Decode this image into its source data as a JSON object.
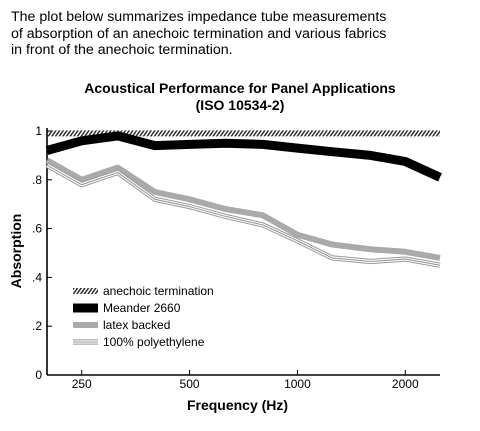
{
  "intro_text": "The plot below summarizes impedance tube measurements\nof absorption of an anechoic termination and various fabrics\nin front of the anechoic termination.",
  "chart_data": {
    "type": "line",
    "title": "Acoustical Performance for Panel Applications",
    "subtitle": "(ISO 10534-2)",
    "xlabel": "Frequency (Hz)",
    "ylabel": "Absorption",
    "x_scale": "log",
    "xlim": [
      200,
      2500
    ],
    "ylim": [
      0,
      1
    ],
    "x_ticks": [
      250,
      500,
      1000,
      2000
    ],
    "x_tick_labels": [
      "250",
      "500",
      "1000",
      "2000"
    ],
    "y_ticks": [
      0,
      0.2,
      0.4,
      0.6,
      0.8,
      1
    ],
    "y_tick_labels": [
      "0",
      ".2",
      ".4",
      ".6",
      ".8",
      "1"
    ],
    "grid": false,
    "legend_position": "lower-left",
    "x": [
      200,
      250,
      315,
      400,
      500,
      630,
      800,
      1000,
      1250,
      1600,
      2000,
      2500
    ],
    "series": [
      {
        "name": "anechoic termination",
        "style": "hatched",
        "color": "#333333",
        "values": [
          0.99,
          0.99,
          0.99,
          0.99,
          0.99,
          0.99,
          0.99,
          0.99,
          0.99,
          0.99,
          0.99,
          0.99
        ]
      },
      {
        "name": "Meander 2660",
        "style": "thick",
        "color": "#000000",
        "values": [
          0.92,
          0.96,
          0.98,
          0.94,
          0.945,
          0.95,
          0.945,
          0.93,
          0.915,
          0.9,
          0.875,
          0.81
        ]
      },
      {
        "name": "latex backed",
        "style": "medium",
        "color": "#aaaaaa",
        "values": [
          0.88,
          0.8,
          0.85,
          0.75,
          0.72,
          0.68,
          0.655,
          0.575,
          0.535,
          0.515,
          0.505,
          0.48
        ]
      },
      {
        "name": "100% polyethylene",
        "style": "triple",
        "color": "#999999",
        "values": [
          0.86,
          0.78,
          0.83,
          0.72,
          0.69,
          0.65,
          0.615,
          0.55,
          0.48,
          0.465,
          0.475,
          0.45
        ]
      }
    ]
  }
}
